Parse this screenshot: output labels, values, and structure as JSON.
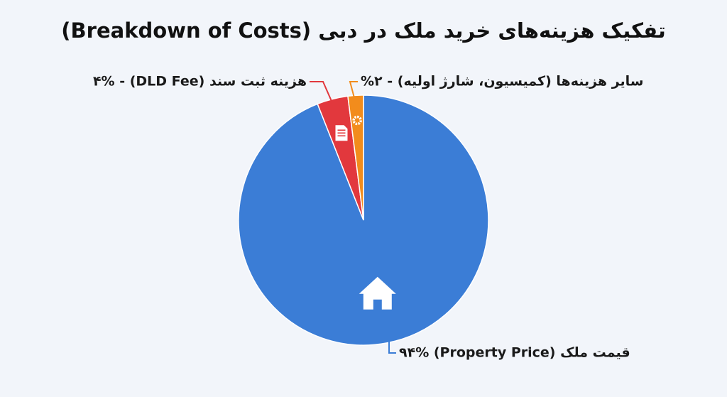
{
  "chart_data": {
    "type": "pie",
    "title": "تفکیک هزینه‌های خرید ملک در دبی (Breakdown of Costs)",
    "categories": [
      "قیمت ملک (Property Price) ۹۴%",
      "هزینه ثبت سند (DLD Fee) - ۴%",
      "سایر هزینه‌ها (کمیسیون، شارژ اولیه) - ۲%"
    ],
    "values": [
      94,
      4,
      2
    ],
    "colors": [
      "#3b7dd6",
      "#e2383d",
      "#f28c1c"
    ]
  }
}
